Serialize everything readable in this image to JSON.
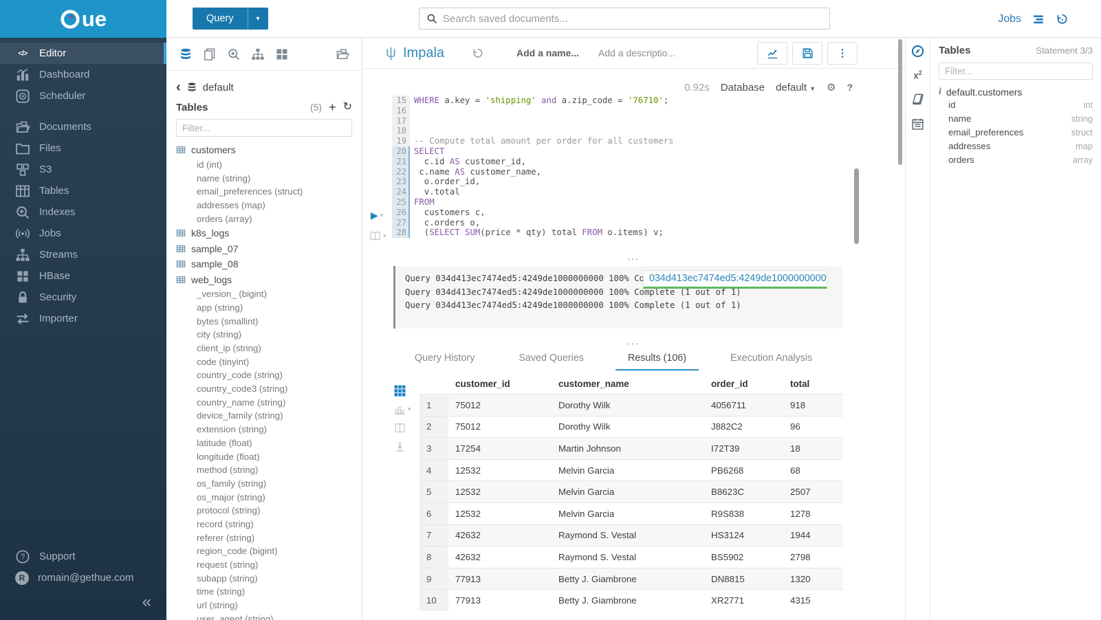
{
  "brand": {
    "logo_text": "ue"
  },
  "topbar": {
    "query_button": "Query",
    "search_placeholder": "Search saved documents...",
    "jobs_label": "Jobs"
  },
  "sidebar": {
    "items": [
      {
        "label": "Editor",
        "icon": "code",
        "active": true
      },
      {
        "label": "Dashboard",
        "icon": "dashboard"
      },
      {
        "label": "Scheduler",
        "icon": "scheduler",
        "gap_after": true
      },
      {
        "label": "Documents",
        "icon": "documents"
      },
      {
        "label": "Files",
        "icon": "files"
      },
      {
        "label": "S3",
        "icon": "s3"
      },
      {
        "label": "Tables",
        "icon": "tables"
      },
      {
        "label": "Indexes",
        "icon": "indexes"
      },
      {
        "label": "Jobs",
        "icon": "jobs"
      },
      {
        "label": "Streams",
        "icon": "streams"
      },
      {
        "label": "HBase",
        "icon": "hbase"
      },
      {
        "label": "Security",
        "icon": "security"
      },
      {
        "label": "Importer",
        "icon": "importer"
      }
    ],
    "support_label": "Support",
    "avatar_letter": "R",
    "user_email": "romain@gethue.com"
  },
  "left_assist": {
    "breadcrumb": "default",
    "title": "Tables",
    "count": "(5)",
    "filter_placeholder": "Filter...",
    "tables": [
      {
        "name": "customers",
        "columns": [
          "id (int)",
          "name (string)",
          "email_preferences (struct)",
          "addresses (map)",
          "orders (array)"
        ]
      },
      {
        "name": "k8s_logs",
        "columns": []
      },
      {
        "name": "sample_07",
        "columns": []
      },
      {
        "name": "sample_08",
        "columns": []
      },
      {
        "name": "web_logs",
        "columns": [
          "_version_ (bigint)",
          "app (string)",
          "bytes (smallint)",
          "city (string)",
          "client_ip (string)",
          "code (tinyint)",
          "country_code (string)",
          "country_code3 (string)",
          "country_name (string)",
          "device_family (string)",
          "extension (string)",
          "latitude (float)",
          "longitude (float)",
          "method (string)",
          "os_family (string)",
          "os_major (string)",
          "protocol (string)",
          "record (string)",
          "referer (string)",
          "region_code (bigint)",
          "request (string)",
          "subapp (string)",
          "time (string)",
          "url (string)",
          "user_agent (string)"
        ]
      }
    ]
  },
  "snippet": {
    "engine": "Impala",
    "name_placeholder": "Add a name...",
    "description_placeholder": "Add a descriptio...",
    "exec_time": "0.92s",
    "database_label": "Database",
    "database_value": "default"
  },
  "code": {
    "first_line": 15,
    "active_from": 20,
    "lines": [
      [
        [
          "k",
          "WHERE"
        ],
        [
          "p",
          " a.key = "
        ],
        [
          "s",
          "'shipping'"
        ],
        [
          "p",
          " "
        ],
        [
          "k",
          "and"
        ],
        [
          "p",
          " a.zip_code = "
        ],
        [
          "s",
          "'76710'"
        ],
        [
          "p",
          ";"
        ]
      ],
      [],
      [],
      [],
      [
        [
          "c",
          "-- Compute total amount per order for all customers"
        ]
      ],
      [
        [
          "k",
          "SELECT"
        ]
      ],
      [
        [
          "p",
          "  c.id "
        ],
        [
          "k",
          "AS"
        ],
        [
          "p",
          " customer_id,"
        ]
      ],
      [
        [
          "p",
          " c.name "
        ],
        [
          "k",
          "AS"
        ],
        [
          "p",
          " customer_name,"
        ]
      ],
      [
        [
          "p",
          "  o.order_id,"
        ]
      ],
      [
        [
          "p",
          "  v.total"
        ]
      ],
      [
        [
          "k",
          "FROM"
        ]
      ],
      [
        [
          "p",
          "  customers c,"
        ]
      ],
      [
        [
          "p",
          "  c.orders o,"
        ]
      ],
      [
        [
          "p",
          "  ("
        ],
        [
          "k",
          "SELECT"
        ],
        [
          "p",
          " "
        ],
        [
          "k",
          "SUM"
        ],
        [
          "p",
          "(price * qty) total "
        ],
        [
          "k",
          "FROM"
        ],
        [
          "p",
          " o.items) v;"
        ]
      ]
    ]
  },
  "logs": {
    "lines": [
      "Query 034d413ec7474ed5:4249de1000000000 100% Complete (1 out of 1)",
      "Query 034d413ec7474ed5:4249de1000000000 100% Complete (1 out of 1)",
      "Query 034d413ec7474ed5:4249de1000000000 100% Complete (1 out of 1)"
    ],
    "tooltip": "034d413ec7474ed5:4249de1000000000"
  },
  "result_tabs": {
    "tabs": [
      "Query History",
      "Saved Queries",
      "Results (106)",
      "Execution Analysis"
    ],
    "active_index": 2
  },
  "results": {
    "columns": [
      "customer_id",
      "customer_name",
      "order_id",
      "total"
    ],
    "rows": [
      [
        "1",
        "75012",
        "Dorothy Wilk",
        "4056711",
        "918"
      ],
      [
        "2",
        "75012",
        "Dorothy Wilk",
        "J882C2",
        "96"
      ],
      [
        "3",
        "17254",
        "Martin Johnson",
        "I72T39",
        "18"
      ],
      [
        "4",
        "12532",
        "Melvin Garcia",
        "PB6268",
        "68"
      ],
      [
        "5",
        "12532",
        "Melvin Garcia",
        "B8623C",
        "2507"
      ],
      [
        "6",
        "12532",
        "Melvin Garcia",
        "R9S838",
        "1278"
      ],
      [
        "7",
        "42632",
        "Raymond S. Vestal",
        "HS3124",
        "1944"
      ],
      [
        "8",
        "42632",
        "Raymond S. Vestal",
        "BS5902",
        "2798"
      ],
      [
        "9",
        "77913",
        "Betty J. Giambrone",
        "DN8815",
        "1320"
      ],
      [
        "10",
        "77913",
        "Betty J. Giambrone",
        "XR2771",
        "4315"
      ]
    ]
  },
  "right_assist": {
    "title": "Tables",
    "statement": "Statement 3/3",
    "filter_placeholder": "Filter...",
    "table_name": "default.customers",
    "columns": [
      {
        "name": "id",
        "type": "int"
      },
      {
        "name": "name",
        "type": "string"
      },
      {
        "name": "email_preferences",
        "type": "struct"
      },
      {
        "name": "addresses",
        "type": "map"
      },
      {
        "name": "orders",
        "type": "array"
      }
    ]
  }
}
